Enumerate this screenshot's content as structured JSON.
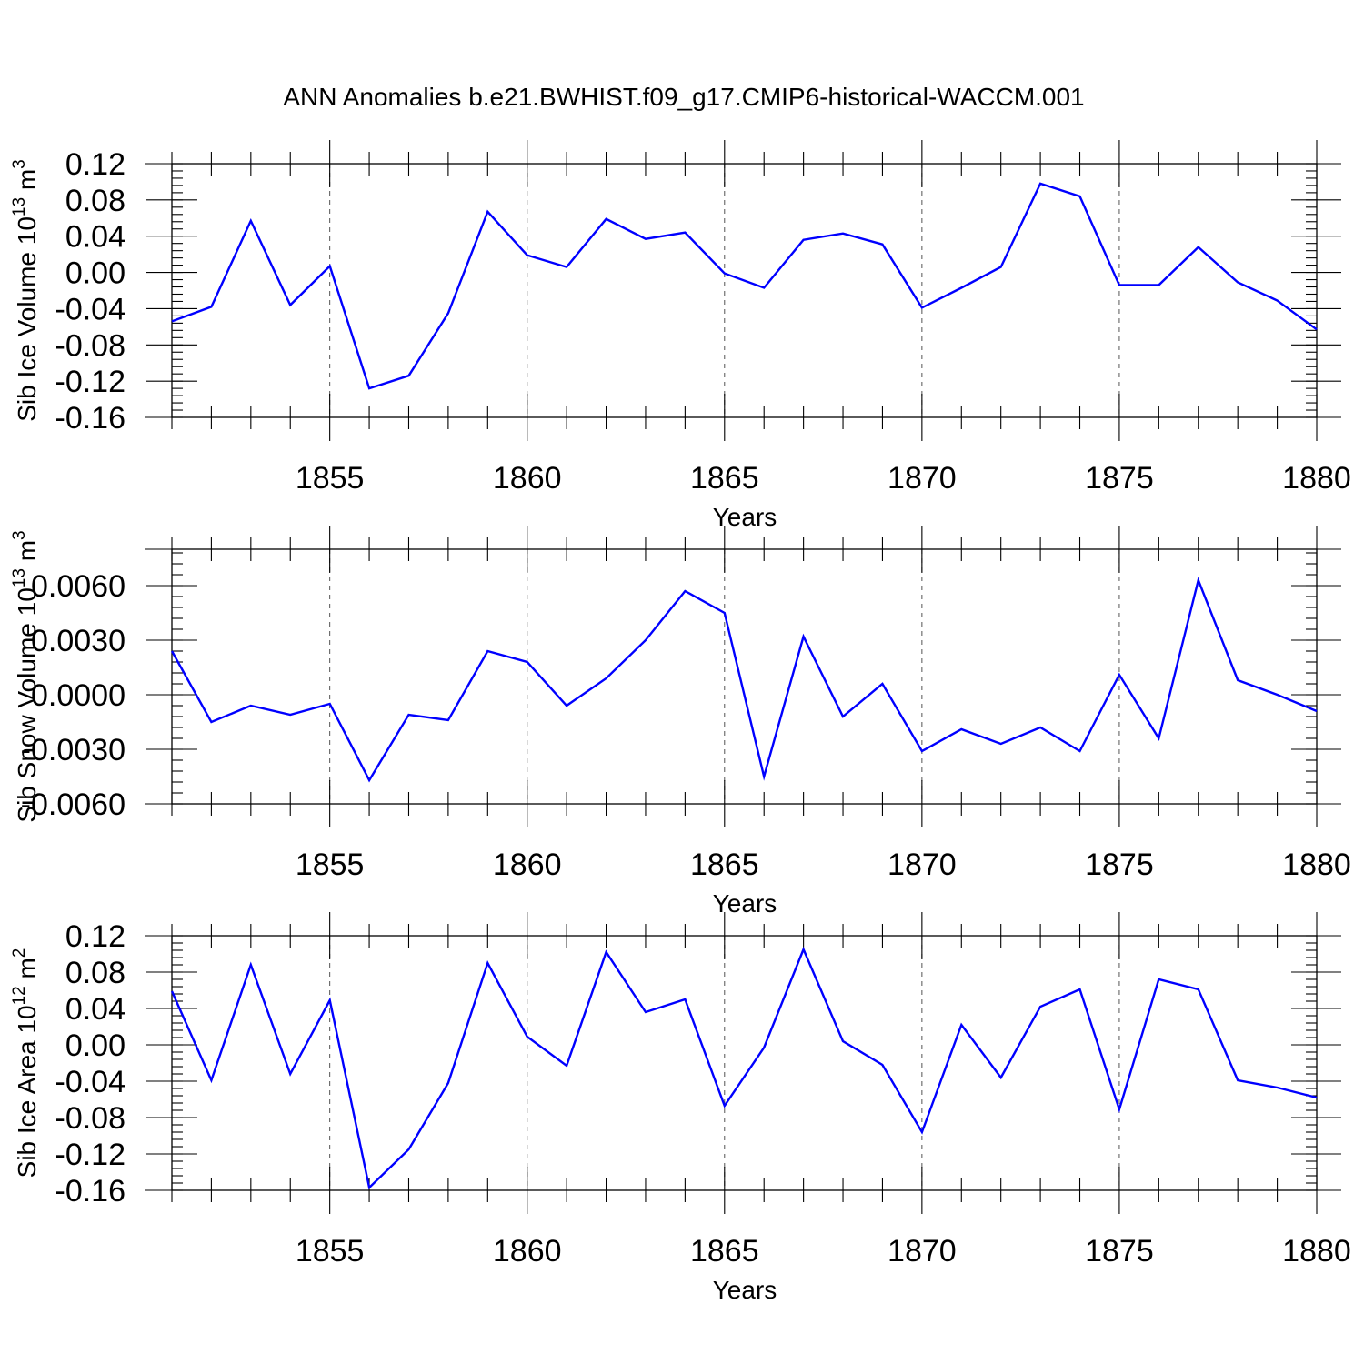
{
  "title": "ANN Anomalies b.e21.BWHIST.f09_g17.CMIP6-historical-WACCM.001",
  "colors": {
    "line": "#0000ff",
    "axis": "#000000",
    "grid": "#555555"
  },
  "chart_data": [
    {
      "type": "line",
      "ylabel": "Sib Ice Volume 10",
      "ylabel_exp": "13",
      "ylabel_unit": " m",
      "ylabel_unit_exp": "3",
      "xlabel": "Years",
      "xlim": [
        1851,
        1880
      ],
      "ylim": [
        -0.16,
        0.12
      ],
      "x_ticks": [
        1855,
        1860,
        1865,
        1870,
        1875,
        1880
      ],
      "x_tick_labels": [
        "1855",
        "1860",
        "1865",
        "1870",
        "1875",
        "1880"
      ],
      "y_ticks": [
        0.12,
        0.08,
        0.04,
        0.0,
        -0.04,
        -0.08,
        -0.12,
        -0.16
      ],
      "y_tick_labels": [
        "0.12",
        "0.08",
        "0.04",
        "0.00",
        "-0.04",
        "-0.08",
        "-0.12",
        "-0.16"
      ],
      "y_minor_step": 0.008,
      "x": [
        1851,
        1852,
        1853,
        1854,
        1855,
        1856,
        1857,
        1858,
        1859,
        1860,
        1861,
        1862,
        1863,
        1864,
        1865,
        1866,
        1867,
        1868,
        1869,
        1870,
        1871,
        1872,
        1873,
        1874,
        1875,
        1876,
        1877,
        1878,
        1879,
        1880
      ],
      "values": [
        -0.054,
        -0.038,
        0.057,
        -0.036,
        0.007,
        -0.128,
        -0.114,
        -0.045,
        0.067,
        0.019,
        0.006,
        0.059,
        0.037,
        0.044,
        -0.001,
        -0.017,
        0.036,
        0.043,
        0.031,
        -0.039,
        -0.017,
        0.006,
        0.098,
        0.084,
        -0.014,
        -0.014,
        0.028,
        -0.011,
        -0.031,
        -0.063
      ]
    },
    {
      "type": "line",
      "ylabel": "Sib Snow Volume 10",
      "ylabel_exp": "13",
      "ylabel_unit": " m",
      "ylabel_unit_exp": "3",
      "xlabel": "Years",
      "xlim": [
        1851,
        1880
      ],
      "ylim": [
        -0.006,
        0.008
      ],
      "x_ticks": [
        1855,
        1860,
        1865,
        1870,
        1875,
        1880
      ],
      "x_tick_labels": [
        "1855",
        "1860",
        "1865",
        "1870",
        "1875",
        "1880"
      ],
      "y_ticks": [
        0.006,
        0.003,
        0.0,
        -0.003,
        -0.006
      ],
      "y_tick_labels": [
        "0.0060",
        "0.0030",
        "0.0000",
        "-0.0030",
        "-0.0060"
      ],
      "y_minor_step": 0.0006,
      "x": [
        1851,
        1852,
        1853,
        1854,
        1855,
        1856,
        1857,
        1858,
        1859,
        1860,
        1861,
        1862,
        1863,
        1864,
        1865,
        1866,
        1867,
        1868,
        1869,
        1870,
        1871,
        1872,
        1873,
        1874,
        1875,
        1876,
        1877,
        1878,
        1879,
        1880
      ],
      "values": [
        0.0024,
        -0.0015,
        -0.0006,
        -0.0011,
        -0.0005,
        -0.0047,
        -0.0011,
        -0.0014,
        0.0024,
        0.0018,
        -0.0006,
        0.0009,
        0.003,
        0.0057,
        0.0045,
        -0.0045,
        0.0032,
        -0.0012,
        0.0006,
        -0.0031,
        -0.0019,
        -0.0027,
        -0.0018,
        -0.0031,
        0.0011,
        -0.0024,
        0.0063,
        0.0008,
        0.0,
        -0.0009
      ]
    },
    {
      "type": "line",
      "ylabel": "Sib Ice Area 10",
      "ylabel_exp": "12",
      "ylabel_unit": " m",
      "ylabel_unit_exp": "2",
      "xlabel": "Years",
      "xlim": [
        1851,
        1880
      ],
      "ylim": [
        -0.16,
        0.12
      ],
      "x_ticks": [
        1855,
        1860,
        1865,
        1870,
        1875,
        1880
      ],
      "x_tick_labels": [
        "1855",
        "1860",
        "1865",
        "1870",
        "1875",
        "1880"
      ],
      "y_ticks": [
        0.12,
        0.08,
        0.04,
        0.0,
        -0.04,
        -0.08,
        -0.12,
        -0.16
      ],
      "y_tick_labels": [
        "0.12",
        "0.08",
        "0.04",
        "0.00",
        "-0.04",
        "-0.08",
        "-0.12",
        "-0.16"
      ],
      "y_minor_step": 0.008,
      "x": [
        1851,
        1852,
        1853,
        1854,
        1855,
        1856,
        1857,
        1858,
        1859,
        1860,
        1861,
        1862,
        1863,
        1864,
        1865,
        1866,
        1867,
        1868,
        1869,
        1870,
        1871,
        1872,
        1873,
        1874,
        1875,
        1876,
        1877,
        1878,
        1879,
        1880
      ],
      "values": [
        0.059,
        -0.039,
        0.088,
        -0.032,
        0.049,
        -0.157,
        -0.115,
        -0.042,
        0.09,
        0.009,
        -0.023,
        0.102,
        0.036,
        0.05,
        -0.067,
        -0.003,
        0.105,
        0.004,
        -0.022,
        -0.096,
        0.022,
        -0.036,
        0.042,
        0.061,
        -0.071,
        0.072,
        0.061,
        -0.039,
        -0.047,
        -0.058
      ]
    }
  ]
}
